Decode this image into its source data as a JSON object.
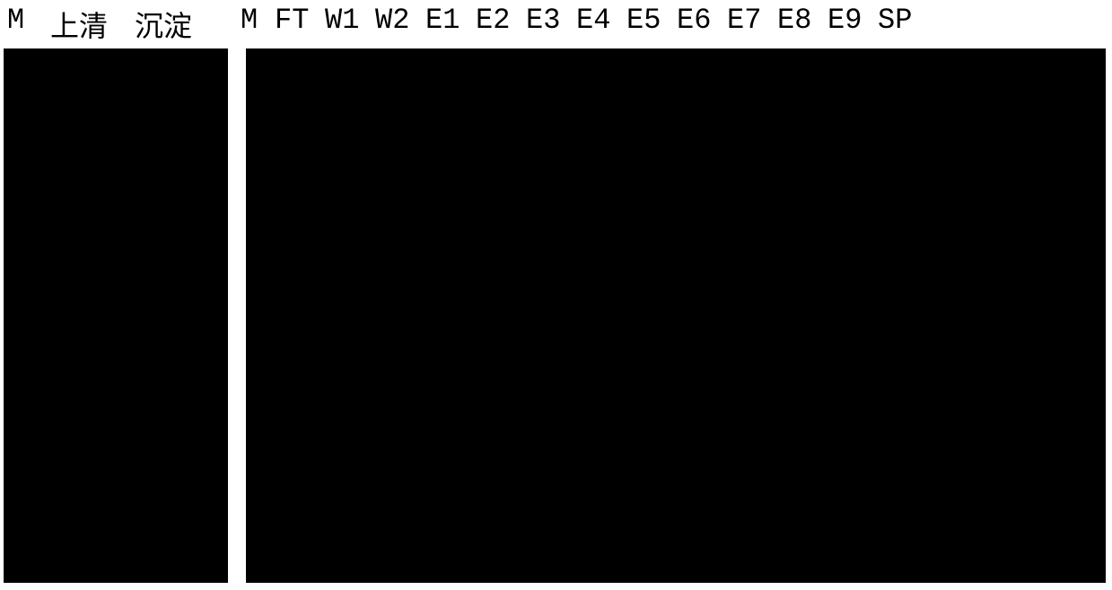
{
  "figure": {
    "type": "gel_electrophoresis_figure",
    "background_color": "#ffffff",
    "label_color": "#000000",
    "gel_color": "#000000",
    "label_fontsize": 32,
    "label_font_family": "SimSun",
    "labels_left": {
      "m": "M",
      "supernatant": "上清",
      "precipitate": "沉淀"
    },
    "labels_right": {
      "m": "M",
      "ft": "FT",
      "w1": "W1",
      "w2": "W2",
      "e1": "E1",
      "e2": "E2",
      "e3": "E3",
      "e4": "E4",
      "e5": "E5",
      "e6": "E6",
      "e7": "E7",
      "e8": "E8",
      "e9": "E9",
      "sp": "SP"
    },
    "layout": {
      "total_width": 1239,
      "total_height": 657,
      "label_row_height": 54,
      "gel_left_width": 250,
      "gel_left_height": 595,
      "gel_right_width": 958,
      "gel_right_height": 595,
      "gap_between_gels": 20
    }
  }
}
